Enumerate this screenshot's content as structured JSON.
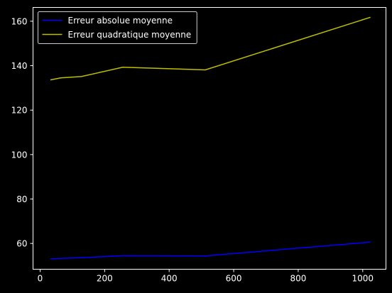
{
  "chart_data": {
    "type": "line",
    "title": "",
    "xlabel": "",
    "ylabel": "",
    "xlim": [
      -22,
      1072
    ],
    "ylim": [
      48.4,
      166.2
    ],
    "x_ticks": [
      0,
      200,
      400,
      600,
      800,
      1000
    ],
    "y_ticks": [
      60,
      80,
      100,
      120,
      140,
      160
    ],
    "grid": false,
    "legend_position": "top-left",
    "background": "#000000",
    "axis_color": "#ffffff",
    "series": [
      {
        "name": "Erreur absolue moyenne",
        "color": "#0000ff",
        "x": [
          32,
          64,
          128,
          256,
          512,
          1024
        ],
        "y": [
          53.1,
          53.3,
          53.6,
          54.5,
          54.4,
          60.6
        ]
      },
      {
        "name": "Erreur quadratique moyenne",
        "color": "#bfbf00",
        "x": [
          32,
          64,
          128,
          256,
          512,
          1024
        ],
        "y": [
          133.6,
          134.5,
          135.1,
          139.3,
          138.1,
          161.8
        ]
      }
    ]
  }
}
